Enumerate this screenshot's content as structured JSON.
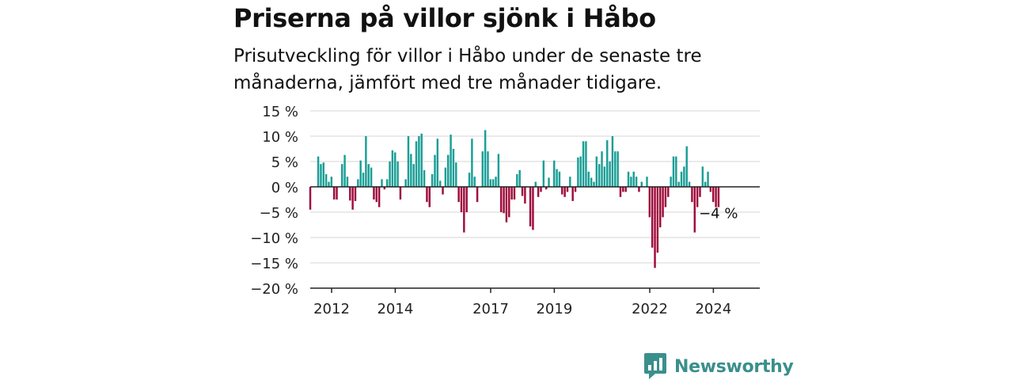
{
  "title": "Priserna på villor sjönk i Håbo",
  "subtitle": "Prisutveckling för villor i Håbo under de senaste tre månaderna, jämfört med tre månader tidigare.",
  "brand": {
    "name": "Newsworthy",
    "color": "#3a8f8c"
  },
  "colors": {
    "positive": "#1a9e96",
    "negative": "#9e0b3c",
    "grid": "#dddddd",
    "axis": "#222222"
  },
  "chart_data": {
    "type": "bar",
    "ylim": [
      -20,
      15
    ],
    "yticks": [
      15,
      10,
      5,
      0,
      -5,
      -10,
      -15,
      -20
    ],
    "ytick_labels": [
      "15 %",
      "10 %",
      "5 %",
      "0 %",
      "−5 %",
      "−10 %",
      "−15 %",
      "−20 %"
    ],
    "xticks": [
      {
        "label": "2012",
        "at": 2012.0
      },
      {
        "label": "2014",
        "at": 2014.0
      },
      {
        "label": "2017",
        "at": 2017.0
      },
      {
        "label": "2019",
        "at": 2019.0
      },
      {
        "label": "2022",
        "at": 2022.0
      },
      {
        "label": "2024",
        "at": 2024.0
      }
    ],
    "x_start": 2011.333,
    "months_per_bar": 1,
    "annotation": {
      "text": "−4 %",
      "value": -4
    },
    "values": [
      -4.5,
      null,
      null,
      6,
      4.5,
      4.8,
      2.5,
      1,
      2,
      -2.5,
      -2.5,
      null,
      4.5,
      6.3,
      2,
      -2.7,
      -4.5,
      -2.8,
      1.5,
      5.2,
      2.8,
      10,
      4.5,
      3.8,
      -2.5,
      -3,
      -4,
      1.5,
      -0.5,
      1.5,
      5,
      7.2,
      6.8,
      5,
      -2.5,
      null,
      1.5,
      10,
      6.5,
      4.5,
      9,
      10,
      10.5,
      3.3,
      -3,
      -4,
      2.5,
      6.3,
      9.5,
      1.2,
      -1.5,
      3.8,
      6.3,
      10.3,
      7.5,
      4.8,
      -3,
      -5,
      -9,
      -5,
      2.8,
      9.5,
      2,
      -3,
      null,
      7,
      11.2,
      7,
      1.5,
      1.5,
      2,
      6.5,
      -5,
      -5.2,
      -7,
      -6,
      -2.5,
      -2.5,
      2.5,
      3.3,
      -1.8,
      -3.3,
      0,
      -7.8,
      -8.5,
      1,
      -2,
      -1,
      5.2,
      -0.5,
      1.8,
      null,
      5.2,
      3.5,
      3,
      -1.5,
      -2,
      -1,
      2,
      -2.8,
      -1,
      5.8,
      6,
      9,
      9,
      3,
      1.8,
      1,
      6,
      4.5,
      7,
      4,
      9.2,
      5,
      10,
      7,
      7,
      -2,
      -1,
      -1,
      3,
      2,
      3,
      2,
      -1,
      1,
      null,
      2,
      -6,
      -12,
      -16,
      -13,
      -8,
      -6,
      -4,
      -2,
      2,
      6,
      6,
      1,
      3,
      4,
      8,
      1,
      -3,
      -9,
      -4,
      -2,
      4,
      1,
      3,
      -1,
      -3,
      -4,
      -4
    ]
  }
}
